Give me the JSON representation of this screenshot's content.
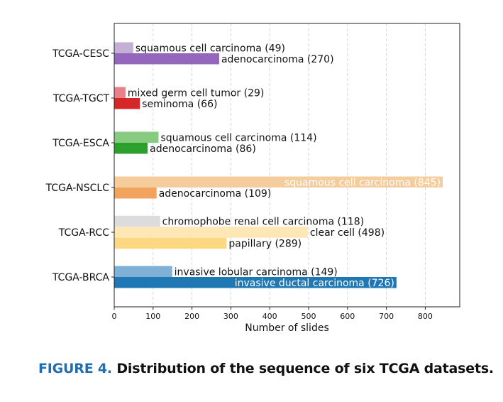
{
  "chart_data": {
    "type": "bar",
    "orientation": "horizontal",
    "xlabel": "Number of slides",
    "xlim": [
      0,
      890
    ],
    "xticks": [
      0,
      100,
      200,
      300,
      400,
      500,
      600,
      700,
      800
    ],
    "grid": "vertical dashed",
    "groups": [
      {
        "name": "TCGA-CESC",
        "bars": [
          {
            "label": "squamous cell carcinoma (49)",
            "value": 49,
            "color": "#c5b0d5"
          },
          {
            "label": "adenocarcinoma (270)",
            "value": 270,
            "color": "#9467bd"
          }
        ]
      },
      {
        "name": "TCGA-TGCT",
        "bars": [
          {
            "label": "mixed germ cell tumor (29)",
            "value": 29,
            "color": "#e8828a"
          },
          {
            "label": "seminoma (66)",
            "value": 66,
            "color": "#d62728"
          }
        ]
      },
      {
        "name": "TCGA-ESCA",
        "bars": [
          {
            "label": "squamous cell carcinoma (114)",
            "value": 114,
            "color": "#86cb7f"
          },
          {
            "label": "adenocarcinoma (86)",
            "value": 86,
            "color": "#2ca02c"
          }
        ]
      },
      {
        "name": "TCGA-NSCLC",
        "bars": [
          {
            "label": "squamous cell carcinoma (845)",
            "value": 845,
            "color": "#f5cd9c"
          },
          {
            "label": "adenocarcinoma (109)",
            "value": 109,
            "color": "#f2a35e"
          }
        ]
      },
      {
        "name": "TCGA-RCC",
        "bars": [
          {
            "label": "chromophobe renal cell carcinoma (118)",
            "value": 118,
            "color": "#dcdcdc"
          },
          {
            "label": "clear cell (498)",
            "value": 498,
            "color": "#fde7b5"
          },
          {
            "label": "papillary (289)",
            "value": 289,
            "color": "#fcd882"
          }
        ]
      },
      {
        "name": "TCGA-BRCA",
        "bars": [
          {
            "label": "invasive lobular carcinoma (149)",
            "value": 149,
            "color": "#7fb0d6"
          },
          {
            "label": "invasive ductal carcinoma (726)",
            "value": 726,
            "color": "#1f77b4"
          }
        ]
      }
    ]
  },
  "caption": {
    "figure_label": "FIGURE 4.",
    "text": "Distribution of the sequence of six TCGA datasets."
  }
}
